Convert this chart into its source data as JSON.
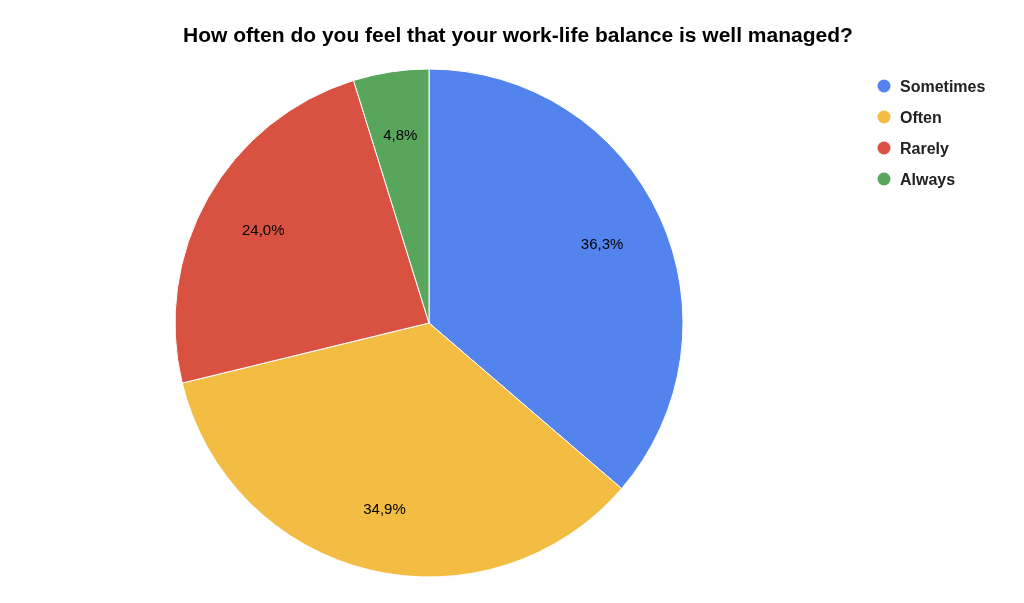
{
  "chart_data": {
    "type": "pie",
    "title": "How often do you feel that your work-life balance is well managed?",
    "categories": [
      "Sometimes",
      "Often",
      "Rarely",
      "Always"
    ],
    "values": [
      36.3,
      34.9,
      24.0,
      4.8
    ],
    "colors": [
      "#5384ed",
      "#f2bd42",
      "#d95140",
      "#58a55c"
    ],
    "value_labels": [
      "36,3%",
      "34,9%",
      "24,0%",
      "4,8%"
    ],
    "legend": "top right"
  }
}
